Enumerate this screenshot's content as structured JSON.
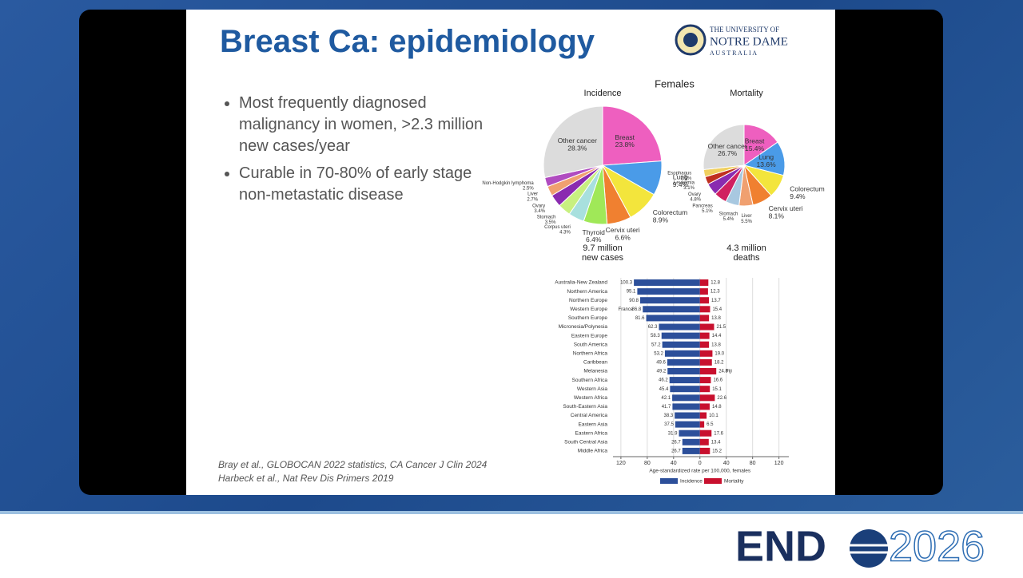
{
  "slide": {
    "title": "Breast Ca: epidemiology",
    "bullets": [
      "Most frequently diagnosed malignancy in women, >2.3 million new cases/year",
      "Curable in 70-80% of early stage non-metastatic disease"
    ],
    "references": [
      "Bray et al., GLOBOCAN 2022 statistics, CA Cancer J Clin 2024",
      "Harbeck et al., Nat Rev Dis Primers 2019"
    ],
    "logo": [
      "THE UNIVERSITY OF",
      "NOTRE DAME",
      "A U S T R A L I A"
    ],
    "figure_title": "Females"
  },
  "footer": {
    "brand": "END",
    "year": "2026"
  },
  "chart_data": [
    {
      "type": "pie",
      "title": "Incidence",
      "caption": "9.7 million new cases",
      "categories": [
        "Breast",
        "Lung",
        "Colorectum",
        "Cervix uteri",
        "Thyroid",
        "Corpus uteri",
        "Stomach",
        "Ovary",
        "Liver",
        "Non-Hodgkin lymphoma",
        "Other cancer"
      ],
      "values": [
        23.8,
        9.4,
        8.9,
        6.6,
        6.4,
        4.3,
        3.5,
        3.4,
        2.7,
        2.5,
        28.3
      ],
      "value_labels": [
        "23.8%",
        "9.4%",
        "8.9%",
        "6.6%",
        "6.4%",
        "4.3%",
        "3.5%",
        "3.4%",
        "2.7%",
        "2.5%",
        "28.3%"
      ],
      "colors": [
        "#ee5fbf",
        "#4a9be8",
        "#f3e53c",
        "#f08030",
        "#a0e858",
        "#a8e0de",
        "#c8f080",
        "#8a2bb0",
        "#f0a070",
        "#b04cc0",
        "#dcdcdc"
      ]
    },
    {
      "type": "pie",
      "title": "Mortality",
      "caption": "4.3 million deaths",
      "categories": [
        "Breast",
        "Lung",
        "Colorectum",
        "Cervix uteri",
        "Liver",
        "Stomach",
        "Pancreas",
        "Ovary",
        "Leukemia",
        "Esophagus",
        "Other cancer"
      ],
      "values": [
        15.4,
        13.6,
        9.4,
        8.1,
        5.5,
        5.4,
        5.1,
        4.8,
        3.1,
        2.9,
        26.7
      ],
      "value_labels": [
        "15.4%",
        "13.6%",
        "9.4%",
        "8.1%",
        "5.5%",
        "5.4%",
        "5.1%",
        "4.8%",
        "3.1%",
        "2.9%",
        "26.7%"
      ],
      "colors": [
        "#ee5fbf",
        "#4a9be8",
        "#f3e53c",
        "#f08030",
        "#f0a070",
        "#a8c8e0",
        "#d02060",
        "#8a2bb0",
        "#c03020",
        "#f0d060",
        "#dcdcdc"
      ]
    },
    {
      "type": "bar",
      "orientation": "horizontal",
      "categories": [
        "Australia-New Zealand",
        "Northern America",
        "Northern Europe",
        "Western Europe",
        "Southern Europe",
        "Micronesia/Polynesia",
        "Eastern Europe",
        "South America",
        "Northern Africa",
        "Caribbean",
        "Melanesia",
        "Southern Africa",
        "Western Asia",
        "Western Africa",
        "South-Eastern Asia",
        "Central America",
        "Eastern Asia",
        "Eastern Africa",
        "South Central Asia",
        "Middle Africa"
      ],
      "series": [
        {
          "name": "Incidence",
          "color": "#2c4f9a",
          "direction": "left",
          "values": [
            100.3,
            95.1,
            90.8,
            86.8,
            81.6,
            62.3,
            58.3,
            57.2,
            53.2,
            49.6,
            49.2,
            46.2,
            45.4,
            42.1,
            41.7,
            38.3,
            37.5,
            31.9,
            26.7,
            26.7
          ],
          "value_labels": [
            "100.3",
            "95.1",
            "90.8",
            "86.8",
            "81.6",
            "62.3",
            "58.3",
            "57.2",
            "53.2",
            "49.6",
            "49.2",
            "46.2",
            "45.4",
            "42.1",
            "41.7",
            "38.3",
            "37.5",
            "31.9",
            "26.7",
            "26.7"
          ]
        },
        {
          "name": "Mortality",
          "color": "#c8102e",
          "values": [
            12.8,
            12.3,
            13.7,
            15.4,
            13.8,
            21.5,
            14.4,
            13.8,
            19.0,
            18.2,
            24.8,
            16.6,
            15.1,
            22.6,
            14.8,
            10.1,
            6.5,
            17.6,
            13.4,
            15.2
          ],
          "value_labels": [
            "12.8",
            "12.3",
            "13.7",
            "15.4",
            "13.8",
            "21.5",
            "14.4",
            "13.8",
            "19.0",
            "18.2",
            "24.8",
            "16.6",
            "15.1",
            "22.6",
            "14.8",
            "10.1",
            "6.5",
            "17.6",
            "13.4",
            "15.2"
          ]
        }
      ],
      "xlim": [
        -132,
        135
      ],
      "xticks": [
        {
          "value": -120,
          "label": "120"
        },
        {
          "value": -80,
          "label": "80"
        },
        {
          "value": -40,
          "label": "40"
        },
        0,
        40,
        80,
        120
      ],
      "xlabel": "Age-standardized rate per 100,000, females",
      "annotations": [
        "France",
        "Fiji"
      ],
      "grid": true
    }
  ]
}
